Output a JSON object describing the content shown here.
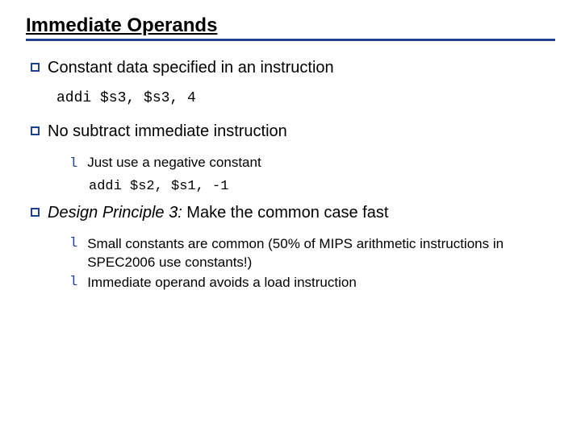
{
  "colors": {
    "accent": "#1f3f8f",
    "text": "#000000",
    "background": "#ffffff"
  },
  "typography": {
    "title_fontsize": 24,
    "body_fontsize": 20,
    "sub_fontsize": 17,
    "code_font": "Courier New"
  },
  "title": "Immediate Operands",
  "bullets": [
    {
      "text": "Constant data specified in an instruction",
      "code": "addi $s3, $s3, 4"
    },
    {
      "text": "No subtract immediate instruction",
      "sub": [
        {
          "text": "Just use a negative constant",
          "code": "addi $s2, $s1, -1"
        }
      ]
    },
    {
      "text_italic_prefix": "Design Principle 3:",
      "text_rest": " Make the common case fast",
      "sub": [
        {
          "text": "Small constants are common (50% of MIPS arithmetic instructions in SPEC2006 use constants!)"
        },
        {
          "text": "Immediate operand avoids a load instruction"
        }
      ]
    }
  ]
}
